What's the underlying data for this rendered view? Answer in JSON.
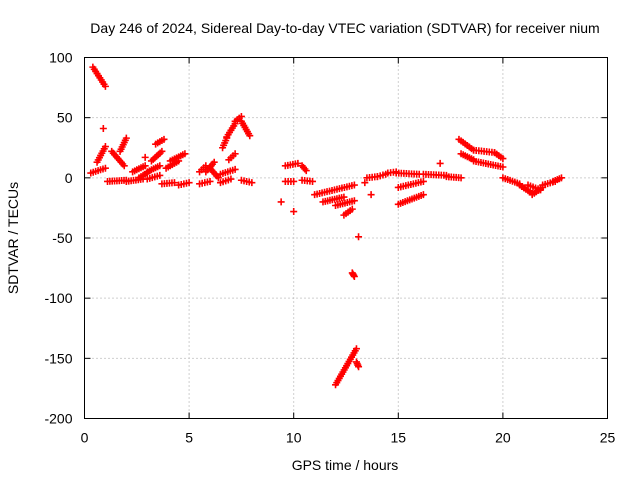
{
  "chart_data": {
    "type": "scatter",
    "title": "Day 246 of 2024, Sidereal Day-to-day VTEC variation (SDTVAR) for receiver nium",
    "xlabel": "GPS time / hours",
    "ylabel": "SDTVAR / TECUs",
    "xlim": [
      0,
      25
    ],
    "ylim": [
      -200,
      100
    ],
    "xticks": [
      0,
      5,
      10,
      15,
      20,
      25
    ],
    "yticks": [
      100,
      50,
      0,
      -50,
      -100,
      -150,
      -200
    ],
    "grid": true,
    "marker": "plus",
    "series_color": "#ff0000",
    "segments": [
      {
        "x0": 0.4,
        "x1": 1.0,
        "y0": 92,
        "y1": 76
      },
      {
        "x0": 0.3,
        "x1": 1.0,
        "y0": 4,
        "y1": 8
      },
      {
        "x0": 0.6,
        "x1": 1.0,
        "y0": 13,
        "y1": 26
      },
      {
        "x0": 1.1,
        "x1": 2.0,
        "y0": -3,
        "y1": -2
      },
      {
        "x0": 1.3,
        "x1": 1.9,
        "y0": 22,
        "y1": 10
      },
      {
        "x0": 1.7,
        "x1": 2.0,
        "y0": 22,
        "y1": 33
      },
      {
        "x0": 2.0,
        "x1": 2.8,
        "y0": -3,
        "y1": -1
      },
      {
        "x0": 2.3,
        "x1": 2.9,
        "y0": 5,
        "y1": 10
      },
      {
        "x0": 2.6,
        "x1": 3.0,
        "y0": 0,
        "y1": 4
      },
      {
        "x0": 3.0,
        "x1": 3.6,
        "y0": 5,
        "y1": 10
      },
      {
        "x0": 3.0,
        "x1": 3.6,
        "y0": -1,
        "y1": 2
      },
      {
        "x0": 3.2,
        "x1": 3.7,
        "y0": 14,
        "y1": 22
      },
      {
        "x0": 3.4,
        "x1": 3.8,
        "y0": 28,
        "y1": 32
      },
      {
        "x0": 3.7,
        "x1": 4.3,
        "y0": -5,
        "y1": -4
      },
      {
        "x0": 3.9,
        "x1": 4.5,
        "y0": 8,
        "y1": 14
      },
      {
        "x0": 4.1,
        "x1": 4.8,
        "y0": 14,
        "y1": 20
      },
      {
        "x0": 4.5,
        "x1": 5.0,
        "y0": -6,
        "y1": -4
      },
      {
        "x0": 5.5,
        "x1": 6.0,
        "y0": -5,
        "y1": -3
      },
      {
        "x0": 5.5,
        "x1": 5.8,
        "y0": 5,
        "y1": 10
      },
      {
        "x0": 5.8,
        "x1": 6.2,
        "y0": 5,
        "y1": 13
      },
      {
        "x0": 6.0,
        "x1": 6.4,
        "y0": 8,
        "y1": 0
      },
      {
        "x0": 6.5,
        "x1": 7.0,
        "y0": -4,
        "y1": -1
      },
      {
        "x0": 6.5,
        "x1": 7.2,
        "y0": 3,
        "y1": 7
      },
      {
        "x0": 6.6,
        "x1": 6.8,
        "y0": 25,
        "y1": 33
      },
      {
        "x0": 6.8,
        "x1": 7.2,
        "y0": 34,
        "y1": 45
      },
      {
        "x0": 6.9,
        "x1": 7.2,
        "y0": 15,
        "y1": 20
      },
      {
        "x0": 7.2,
        "x1": 7.5,
        "y0": 47,
        "y1": 51
      },
      {
        "x0": 7.5,
        "x1": 7.9,
        "y0": 47,
        "y1": 35
      },
      {
        "x0": 7.5,
        "x1": 8.0,
        "y0": -2,
        "y1": -4
      },
      {
        "x0": 9.6,
        "x1": 10.2,
        "y0": 10,
        "y1": 12
      },
      {
        "x0": 9.6,
        "x1": 10.0,
        "y0": -3,
        "y1": -3
      },
      {
        "x0": 10.4,
        "x1": 10.6,
        "y0": 10,
        "y1": 6
      },
      {
        "x0": 10.4,
        "x1": 10.9,
        "y0": -2,
        "y1": -3
      },
      {
        "x0": 11.0,
        "x1": 12.9,
        "y0": -14,
        "y1": -6
      },
      {
        "x0": 11.4,
        "x1": 12.4,
        "y0": -20,
        "y1": -16
      },
      {
        "x0": 12.0,
        "x1": 12.9,
        "y0": -23,
        "y1": -19
      },
      {
        "x0": 12.4,
        "x1": 12.8,
        "y0": -31,
        "y1": -26
      },
      {
        "x0": 12.0,
        "x1": 13.0,
        "y0": -172,
        "y1": -142
      },
      {
        "x0": 13.0,
        "x1": 13.1,
        "y0": -153,
        "y1": -157
      },
      {
        "x0": 12.8,
        "x1": 12.9,
        "y0": -79,
        "y1": -82
      },
      {
        "x0": 13.5,
        "x1": 14.0,
        "y0": 0,
        "y1": 1
      },
      {
        "x0": 14.0,
        "x1": 14.4,
        "y0": 1,
        "y1": 3
      },
      {
        "x0": 14.5,
        "x1": 14.9,
        "y0": 4,
        "y1": 5
      },
      {
        "x0": 14.9,
        "x1": 16.0,
        "y0": 4,
        "y1": 3
      },
      {
        "x0": 15.0,
        "x1": 16.2,
        "y0": -8,
        "y1": -3
      },
      {
        "x0": 15.0,
        "x1": 16.2,
        "y0": -22,
        "y1": -14
      },
      {
        "x0": 16.2,
        "x1": 17.3,
        "y0": 3,
        "y1": 2
      },
      {
        "x0": 17.3,
        "x1": 18.0,
        "y0": 1,
        "y1": 0
      },
      {
        "x0": 17.9,
        "x1": 18.6,
        "y0": 32,
        "y1": 23
      },
      {
        "x0": 18.6,
        "x1": 19.6,
        "y0": 23,
        "y1": 21
      },
      {
        "x0": 19.6,
        "x1": 20.0,
        "y0": 21,
        "y1": 16
      },
      {
        "x0": 18.0,
        "x1": 18.6,
        "y0": 20,
        "y1": 15
      },
      {
        "x0": 18.6,
        "x1": 20.0,
        "y0": 14,
        "y1": 9
      },
      {
        "x0": 20.0,
        "x1": 20.8,
        "y0": 0,
        "y1": -5
      },
      {
        "x0": 20.8,
        "x1": 21.4,
        "y0": -6,
        "y1": -13
      },
      {
        "x0": 21.4,
        "x1": 21.9,
        "y0": -14,
        "y1": -8
      },
      {
        "x0": 21.2,
        "x1": 21.8,
        "y0": -6,
        "y1": -10
      },
      {
        "x0": 21.9,
        "x1": 22.5,
        "y0": -6,
        "y1": -3
      },
      {
        "x0": 22.4,
        "x1": 22.8,
        "y0": -3,
        "y1": 0
      }
    ],
    "points": [
      {
        "x": 0.9,
        "y": 41
      },
      {
        "x": 2.9,
        "y": 17
      },
      {
        "x": 9.4,
        "y": -20
      },
      {
        "x": 10.0,
        "y": -28
      },
      {
        "x": 13.1,
        "y": -49
      },
      {
        "x": 13.4,
        "y": -4
      },
      {
        "x": 13.7,
        "y": -14
      },
      {
        "x": 17.0,
        "y": 12
      }
    ]
  }
}
